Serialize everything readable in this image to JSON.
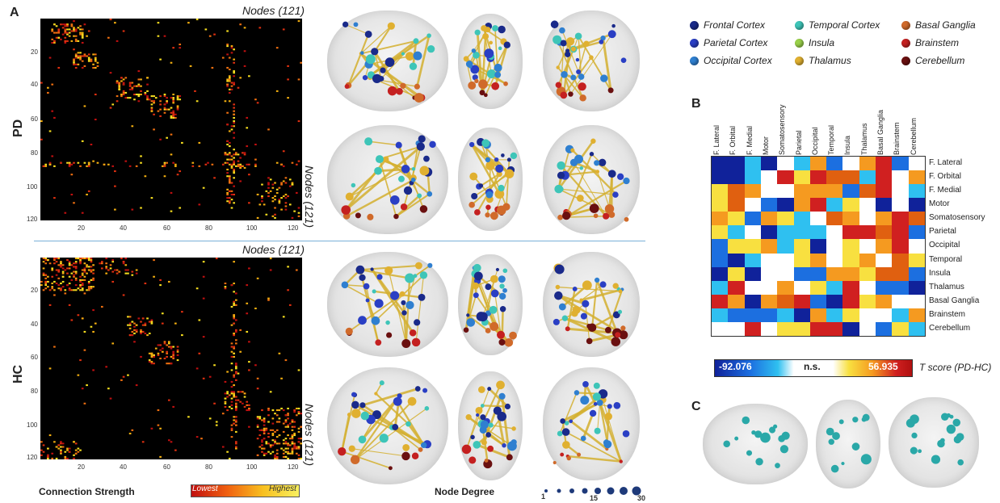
{
  "panels": {
    "a": "A",
    "b": "B",
    "c": "C"
  },
  "rows": {
    "pd": "PD",
    "hc": "HC"
  },
  "matrix": {
    "nodes_label": "Nodes (121)",
    "ticks_x": [
      "20",
      "40",
      "60",
      "80",
      "100",
      "120"
    ],
    "ticks_y": [
      "20",
      "40",
      "60",
      "80",
      "100",
      "120"
    ]
  },
  "legend_regions": [
    {
      "label": "Frontal Cortex",
      "color": "#1a2a8a"
    },
    {
      "label": "Parietal Cortex",
      "color": "#2a3fc4"
    },
    {
      "label": "Occipital Cortex",
      "color": "#2f7fd0"
    },
    {
      "label": "Temporal Cortex",
      "color": "#3ec5b8"
    },
    {
      "label": "Insula",
      "color": "#9ad14a"
    },
    {
      "label": "Thalamus",
      "color": "#e0b030"
    },
    {
      "label": "Basal Ganglia",
      "color": "#d06a2a"
    },
    {
      "label": "Brainstem",
      "color": "#c42020"
    },
    {
      "label": "Cerebellum",
      "color": "#6a1010"
    }
  ],
  "bottom": {
    "connection_strength": "Connection Strength",
    "lowest": "Lowest",
    "highest": "Highest",
    "node_degree": "Node Degree",
    "degree_ticks": [
      "1",
      "15",
      "30"
    ]
  },
  "heatmap": {
    "regions": [
      "F. Lateral",
      "F. Orbital",
      "F. Medial",
      "Motor",
      "Somatosensory",
      "Parietal",
      "Occipital",
      "Temporal",
      "Insula",
      "Thalamus",
      "Basal Ganglia",
      "Brainstem",
      "Cerebellum"
    ],
    "colorbar_min": "-92.076",
    "colorbar_mid": "n.s.",
    "colorbar_max": "56.935",
    "colorbar_label": "T score (PD-HC)"
  }
}
